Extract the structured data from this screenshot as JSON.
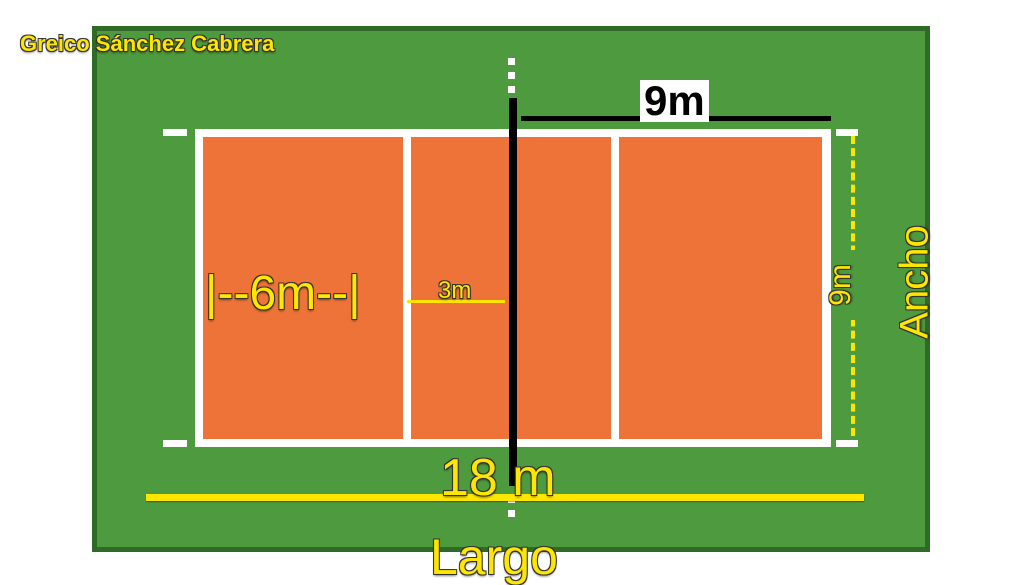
{
  "author": "Greico Sánchez Cabrera",
  "labels": {
    "width_top": "9m",
    "length_bottom": "18 m",
    "zone_back": "|--6m--|",
    "zone_front": "3m",
    "width_side": "9m",
    "ancho": "Ancho",
    "largo": "Largo"
  },
  "colors": {
    "field": "#4e9a3f",
    "field_border": "#2f6a26",
    "court": "#ee7338",
    "lines": "#ffffff",
    "net": "#000000",
    "label_yellow": "#ffe600"
  }
}
